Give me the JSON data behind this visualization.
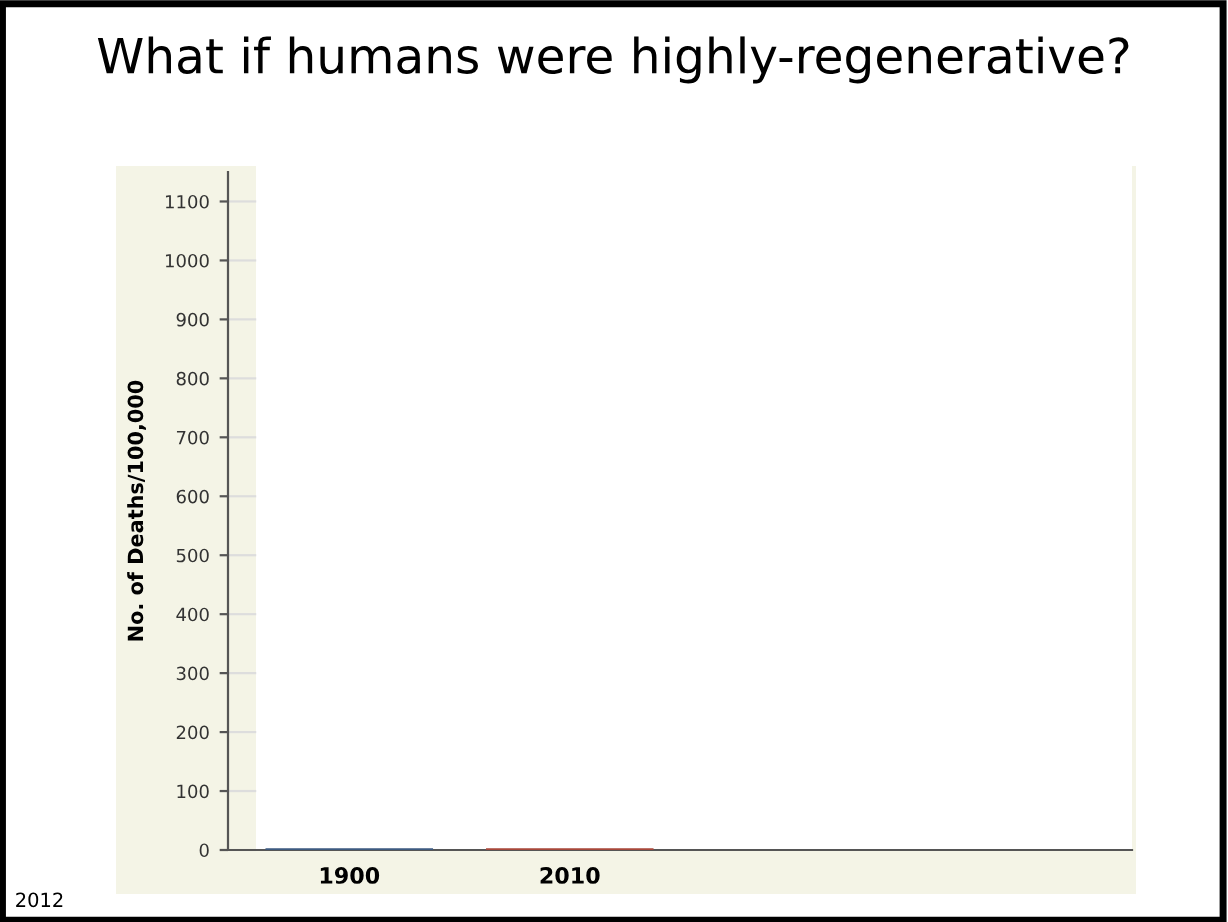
{
  "chart_data": {
    "type": "bar",
    "title": "What if humans were highly-regenerative?",
    "ylabel": "No. of Deaths/100,000",
    "categories": [
      "1900",
      "2010"
    ],
    "values": [
      0,
      0
    ],
    "colors": [
      "#3d5a80",
      "#a8473a"
    ],
    "ylim": [
      0,
      1150
    ],
    "yticks": [
      0,
      100,
      200,
      300,
      400,
      500,
      600,
      700,
      800,
      900,
      1000,
      1100
    ],
    "annotations": [
      "2012"
    ]
  }
}
